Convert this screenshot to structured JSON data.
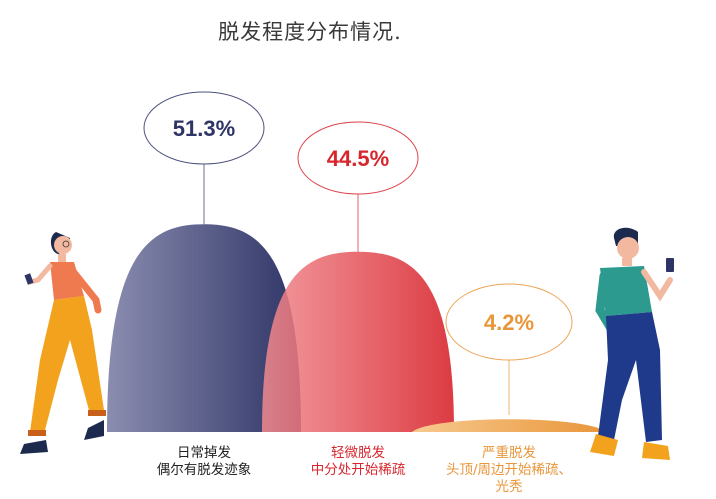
{
  "title": "脱发程度分布情况.",
  "colors": {
    "navy": "#2e3466",
    "red": "#d8262e",
    "orange": "#e9963a"
  },
  "chart_data": {
    "type": "area",
    "title": "脱发程度分布情况.",
    "unit": "%",
    "series": [
      {
        "name": "日常掉发",
        "value": 51.3,
        "label": "51.3%",
        "desc": [
          "日常掉发",
          "偶尔有脱发迹象"
        ]
      },
      {
        "name": "轻微脱发",
        "value": 44.5,
        "label": "44.5%",
        "desc": [
          "轻微脱发",
          "中分处开始稀疏"
        ]
      },
      {
        "name": "严重脱发",
        "value": 4.2,
        "label": "4.2%",
        "desc": [
          "严重脱发",
          "头顶/周边开始稀疏、",
          "光秃"
        ]
      }
    ]
  }
}
